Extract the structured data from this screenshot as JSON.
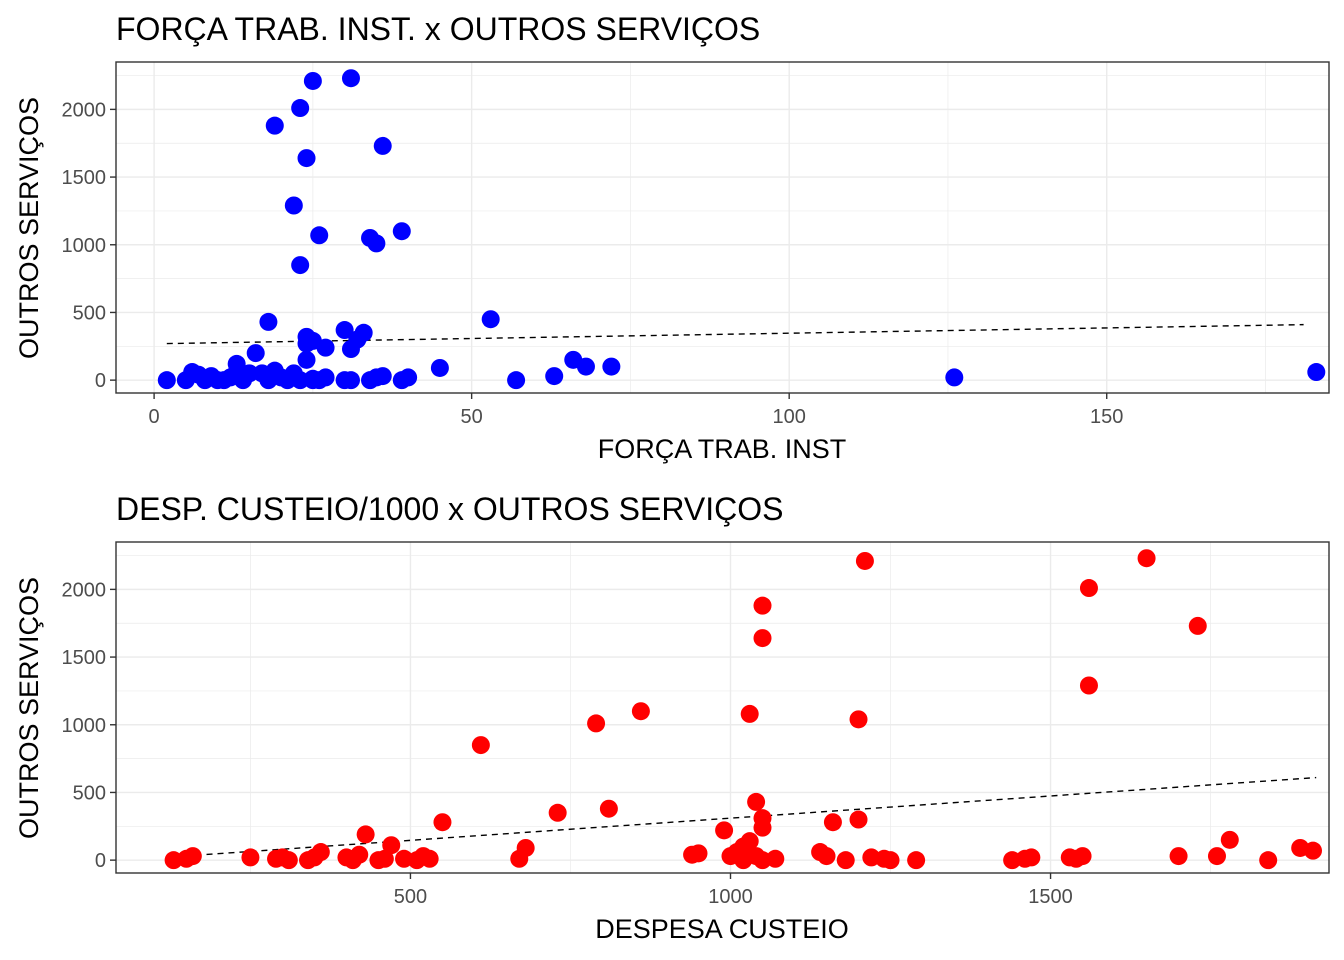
{
  "chart_data": [
    {
      "type": "scatter",
      "title": "FORÇA TRAB. INST. x  OUTROS SERVIÇOS",
      "xlabel": "FORÇA TRAB. INST",
      "ylabel": "OUTROS SERVIÇOS",
      "xlim": [
        -6,
        185
      ],
      "ylim": [
        -95,
        2350
      ],
      "x_ticks": [
        0,
        50,
        100,
        150
      ],
      "x_tick_labels": [
        "0",
        "50",
        "100",
        "150"
      ],
      "y_ticks": [
        0,
        500,
        1000,
        1500,
        2000
      ],
      "y_tick_labels": [
        "0",
        "500",
        "1000",
        "1500",
        "2000"
      ],
      "grid": true,
      "point_color": "#0000ff",
      "trend_line": {
        "style": "dashed",
        "color": "#000000",
        "x": [
          2,
          181
        ],
        "y": [
          270,
          410
        ]
      },
      "x": [
        2,
        5,
        6,
        7,
        8,
        9,
        10,
        11,
        12,
        13,
        13,
        14,
        15,
        16,
        17,
        18,
        18,
        19,
        20,
        21,
        22,
        22,
        23,
        23,
        24,
        24,
        24,
        25,
        25,
        25,
        26,
        26,
        27,
        27,
        30,
        30,
        31,
        31,
        32,
        33,
        34,
        34,
        35,
        35,
        36,
        36,
        39,
        39,
        40,
        45,
        53,
        57,
        63,
        66,
        68,
        72,
        126,
        183,
        19,
        23,
        24,
        25,
        31
      ],
      "y": [
        0,
        0,
        60,
        40,
        0,
        30,
        0,
        0,
        20,
        60,
        120,
        0,
        50,
        200,
        50,
        0,
        430,
        70,
        20,
        0,
        50,
        1290,
        0,
        850,
        150,
        320,
        1640,
        290,
        10,
        2210,
        0,
        1070,
        20,
        240,
        0,
        370,
        230,
        2230,
        300,
        350,
        1050,
        0,
        1010,
        20,
        1730,
        30,
        0,
        1100,
        20,
        90,
        450,
        0,
        30,
        150,
        100,
        100,
        20,
        60,
        1880,
        2010,
        270,
        0,
        0
      ]
    },
    {
      "type": "scatter",
      "title": "DESP. CUSTEIO/1000 x  OUTROS SERVIÇOS",
      "xlabel": "DESPESA CUSTEIO",
      "ylabel": "OUTROS SERVIÇOS",
      "xlim": [
        40,
        1935
      ],
      "ylim": [
        -95,
        2350
      ],
      "x_ticks": [
        500,
        1000,
        1500
      ],
      "x_tick_labels": [
        "500",
        "1000",
        "1500"
      ],
      "y_ticks": [
        0,
        500,
        1000,
        1500,
        2000
      ],
      "y_tick_labels": [
        "0",
        "500",
        "1000",
        "1500",
        "2000"
      ],
      "grid": true,
      "point_color": "#ff0000",
      "trend_line": {
        "style": "dashed",
        "color": "#000000",
        "x": [
          130,
          1915
        ],
        "y": [
          25,
          610
        ]
      },
      "x": [
        130,
        150,
        160,
        250,
        290,
        300,
        310,
        340,
        350,
        360,
        400,
        410,
        420,
        430,
        450,
        460,
        470,
        490,
        510,
        520,
        530,
        550,
        610,
        670,
        680,
        730,
        790,
        810,
        860,
        940,
        950,
        990,
        1000,
        1010,
        1020,
        1020,
        1030,
        1030,
        1040,
        1040,
        1050,
        1050,
        1050,
        1050,
        1050,
        1070,
        1140,
        1150,
        1160,
        1180,
        1200,
        1200,
        1210,
        1220,
        1240,
        1250,
        1290,
        1440,
        1460,
        1470,
        1530,
        1540,
        1550,
        1560,
        1560,
        1650,
        1700,
        1730,
        1760,
        1780,
        1840,
        1890,
        1910
      ],
      "y": [
        0,
        10,
        30,
        20,
        10,
        20,
        0,
        0,
        20,
        60,
        20,
        0,
        40,
        190,
        0,
        10,
        110,
        10,
        0,
        30,
        10,
        280,
        850,
        10,
        90,
        350,
        1010,
        380,
        1100,
        40,
        50,
        220,
        30,
        60,
        100,
        0,
        140,
        1080,
        430,
        30,
        1880,
        1640,
        240,
        310,
        0,
        10,
        60,
        30,
        280,
        0,
        1040,
        300,
        2210,
        20,
        10,
        0,
        0,
        0,
        10,
        20,
        20,
        10,
        30,
        1290,
        2010,
        2230,
        30,
        1730,
        30,
        150,
        0,
        90,
        70
      ]
    }
  ]
}
